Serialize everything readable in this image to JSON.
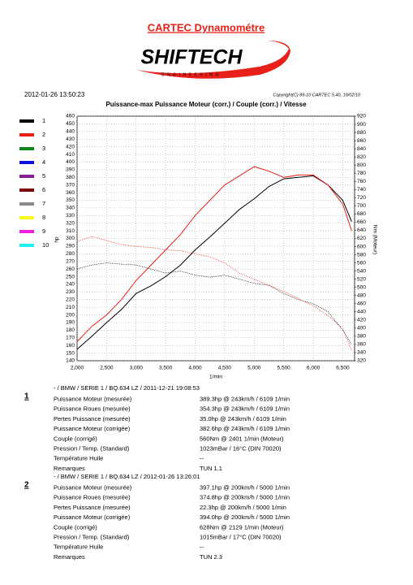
{
  "header": {
    "title": "CARTEC Dynamométre",
    "logo": "SHIFTECH",
    "logo_subtitle": "ENGINEERING",
    "date": "2012-01-26 13:50:23",
    "copyright": "Copyright(C) 89-10 CARTEC 5.40, 19/02/10"
  },
  "chart_data": {
    "type": "line",
    "title": "Puissance-max Puissance Moteur (corr.) / Couple (corr.) / Vitesse",
    "y_label": "hp",
    "y2_label": "Nm (Moteur)",
    "x_label": "1/min",
    "x": [
      2000,
      2250,
      2500,
      2750,
      3000,
      3250,
      3500,
      3750,
      4000,
      4250,
      4500,
      4750,
      5000,
      5250,
      5500,
      5750,
      6000,
      6250,
      6500,
      6650
    ],
    "series": [
      {
        "name": "1",
        "color": "#000000",
        "values": [
          155,
          172,
          190,
          207,
          228,
          238,
          250,
          265,
          285,
          302,
          320,
          338,
          352,
          368,
          378,
          380,
          382,
          370,
          350,
          322
        ]
      },
      {
        "name": "2",
        "color": "#e8201a",
        "values": [
          165,
          185,
          200,
          220,
          245,
          265,
          285,
          305,
          330,
          350,
          370,
          382,
          394,
          388,
          380,
          383,
          383,
          370,
          345,
          310
        ]
      },
      {
        "name": "1",
        "color": "#000000",
        "axis": "y2",
        "dashed": true,
        "values": [
          545,
          555,
          560,
          557,
          555,
          545,
          535,
          540,
          530,
          525,
          530,
          520,
          510,
          505,
          485,
          470,
          460,
          440,
          395,
          360
        ]
      },
      {
        "name": "2",
        "color": "#e8201a",
        "axis": "y2",
        "dashed": true,
        "values": [
          612,
          625,
          615,
          605,
          600,
          598,
          592,
          590,
          582,
          575,
          560,
          535,
          520,
          505,
          490,
          472,
          455,
          430,
          400,
          345
        ]
      }
    ],
    "legend": [
      {
        "name": "1",
        "color": "#000000"
      },
      {
        "name": "2",
        "color": "#e8201a"
      },
      {
        "name": "3",
        "color": "#0a8a1a"
      },
      {
        "name": "4",
        "color": "#1010e0"
      },
      {
        "name": "5",
        "color": "#8a1a9a"
      },
      {
        "name": "6",
        "color": "#7a0a0a"
      },
      {
        "name": "7",
        "color": "#8a8a8a"
      },
      {
        "name": "8",
        "color": "#f8f820"
      },
      {
        "name": "9",
        "color": "#f020e0"
      },
      {
        "name": "10",
        "color": "#20f0f0"
      }
    ],
    "xlim": [
      2000,
      6700
    ],
    "xticks": [
      {
        "value": 2000,
        "label": "2,000"
      },
      {
        "value": 2500,
        "label": "2,500"
      },
      {
        "value": 3000,
        "label": "3,000"
      },
      {
        "value": 3500,
        "label": "3,500"
      },
      {
        "value": 4000,
        "label": "4,000"
      },
      {
        "value": 4500,
        "label": "4,500"
      },
      {
        "value": 5000,
        "label": "5,000"
      },
      {
        "value": 5500,
        "label": "5,500"
      },
      {
        "value": 6000,
        "label": "6,000"
      },
      {
        "value": 6500,
        "label": "6,500"
      }
    ],
    "ylim": [
      140,
      460
    ],
    "yticks": [
      140,
      150,
      160,
      170,
      180,
      190,
      200,
      210,
      220,
      230,
      240,
      250,
      260,
      270,
      280,
      290,
      300,
      310,
      320,
      330,
      340,
      350,
      360,
      370,
      380,
      390,
      400,
      410,
      420,
      430,
      440,
      450,
      460
    ],
    "y2lim": [
      320,
      920
    ],
    "y2ticks": [
      320,
      340,
      360,
      380,
      400,
      420,
      440,
      460,
      480,
      500,
      520,
      540,
      560,
      580,
      600,
      620,
      640,
      660,
      680,
      700,
      720,
      740,
      760,
      780,
      800,
      820,
      840,
      860,
      880,
      900,
      920
    ],
    "grid": true
  },
  "runs": [
    {
      "number": "1",
      "header": "- / BMW / SERIE 1 / BQ.634 LZ / 2011-12-21 19:08:53",
      "rows": [
        [
          "Puissance Moteur (mesurée)",
          "389.3hp @ 243km/h / 6109 1/min"
        ],
        [
          "Puissance Roues (mesurée)",
          "354.3hp @ 243km/h / 6109 1/min"
        ],
        [
          "Pertes Puissance (mesurée)",
          "35.0hp @ 243km/h / 6109 1/min"
        ],
        [
          "Puissance Moteur (corrigée)",
          "382.6hp @ 243km/h / 6109 1/min"
        ],
        [
          "Couple (corrigé)",
          "560Nm @ 2401 1/min (Moteur)"
        ],
        [
          "Pression / Temp. (Standard)",
          "1023mBar / 16°C   (DIN 70020)"
        ],
        [
          "Température Huile",
          "--"
        ],
        [
          "Remarques",
          "TUN 1.1"
        ]
      ]
    },
    {
      "number": "2",
      "header": "- / BMW / SERIE 1 / BQ.634 LZ / 2012-01-26 13:26:01",
      "rows": [
        [
          "Puissance Moteur (mesurée)",
          "397.1hp @ 200km/h / 5000 1/min"
        ],
        [
          "Puissance Roues (mesurée)",
          "374.8hp @ 200km/h / 5000 1/min"
        ],
        [
          "Pertes Puissance (mesurée)",
          "22.3hp @ 200km/h / 5000 1/min"
        ],
        [
          "Puissance Moteur (corrigée)",
          "394.0hp @ 200km/h / 5000 1/min"
        ],
        [
          "Couple (corrigé)",
          "628Nm @ 2129 1/min (Moteur)"
        ],
        [
          "Pression / Temp. (Standard)",
          "1015mBar / 17°C   (DIN 70020)"
        ],
        [
          "Température Huile",
          "--"
        ],
        [
          "Remarques",
          "TUN 2.3"
        ]
      ]
    }
  ]
}
